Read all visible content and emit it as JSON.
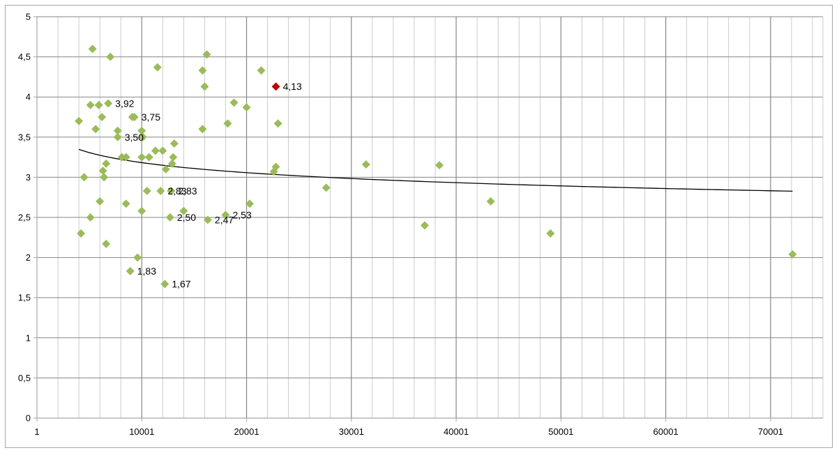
{
  "chart_data": {
    "type": "scatter",
    "title": "",
    "xlabel": "",
    "ylabel": "",
    "xlim": [
      1,
      75001
    ],
    "ylim": [
      0,
      5
    ],
    "x_ticks": [
      1,
      10001,
      20001,
      30001,
      40001,
      50001,
      60001,
      70001
    ],
    "y_ticks": [
      0,
      0.5,
      1,
      1.5,
      2,
      2.5,
      3,
      3.5,
      4,
      4.5,
      5
    ],
    "x_tick_labels": [
      "1",
      "10001",
      "20001",
      "30001",
      "40001",
      "50001",
      "60001",
      "70001"
    ],
    "y_tick_labels": [
      "0",
      "0,5",
      "1",
      "1,5",
      "2",
      "2,5",
      "3",
      "3,5",
      "4",
      "4,5",
      "5"
    ],
    "grid": true,
    "legend": "none",
    "colors": {
      "point": "#9bbb59",
      "highlight": "#c00000",
      "trendline": "#000000",
      "grid": "#a6a6a6"
    },
    "series": [
      {
        "values": [
          [
            5301,
            4.6
          ],
          [
            7001,
            4.5
          ],
          [
            16201,
            4.53
          ],
          [
            11501,
            4.37
          ],
          [
            15801,
            4.33
          ],
          [
            21401,
            4.33
          ],
          [
            16001,
            4.13
          ],
          [
            18801,
            3.93
          ],
          [
            20001,
            3.87
          ],
          [
            4001,
            3.7
          ],
          [
            5101,
            3.9
          ],
          [
            5901,
            3.9
          ],
          [
            6801,
            3.92
          ],
          [
            6201,
            3.75
          ],
          [
            9101,
            3.75
          ],
          [
            9301,
            3.75
          ],
          [
            18201,
            3.67
          ],
          [
            23001,
            3.67
          ],
          [
            5601,
            3.6
          ],
          [
            7701,
            3.58
          ],
          [
            10001,
            3.58
          ],
          [
            15801,
            3.6
          ],
          [
            7701,
            3.5
          ],
          [
            10101,
            3.5
          ],
          [
            13101,
            3.42
          ],
          [
            11301,
            3.33
          ],
          [
            12001,
            3.33
          ],
          [
            8101,
            3.25
          ],
          [
            8501,
            3.25
          ],
          [
            10001,
            3.25
          ],
          [
            10701,
            3.25
          ],
          [
            13001,
            3.25
          ],
          [
            6601,
            3.17
          ],
          [
            12901,
            3.17
          ],
          [
            22801,
            3.13
          ],
          [
            31401,
            3.16
          ],
          [
            38401,
            3.15
          ],
          [
            12301,
            3.1
          ],
          [
            22601,
            3.07
          ],
          [
            6301,
            3.08
          ],
          [
            4501,
            3.0
          ],
          [
            6401,
            3.0
          ],
          [
            27601,
            2.87
          ],
          [
            10501,
            2.83
          ],
          [
            11801,
            2.83
          ],
          [
            12801,
            2.83
          ],
          [
            6001,
            2.7
          ],
          [
            8501,
            2.67
          ],
          [
            20301,
            2.67
          ],
          [
            43301,
            2.7
          ],
          [
            10001,
            2.58
          ],
          [
            14001,
            2.58
          ],
          [
            18001,
            2.53
          ],
          [
            5101,
            2.5
          ],
          [
            12701,
            2.5
          ],
          [
            16301,
            2.47
          ],
          [
            37001,
            2.4
          ],
          [
            4201,
            2.3
          ],
          [
            49001,
            2.3
          ],
          [
            6601,
            2.17
          ],
          [
            9601,
            2.0
          ],
          [
            72101,
            2.04
          ],
          [
            8901,
            1.83
          ],
          [
            12201,
            1.67
          ]
        ]
      },
      {
        "values": [
          [
            22801,
            4.13
          ]
        ]
      }
    ],
    "data_labels": [
      {
        "x": 22801,
        "y": 4.13,
        "text": "4,13"
      },
      {
        "x": 6801,
        "y": 3.92,
        "text": "3,92"
      },
      {
        "x": 9301,
        "y": 3.75,
        "text": "3,75"
      },
      {
        "x": 7701,
        "y": 3.5,
        "text": "3,50"
      },
      {
        "x": 11801,
        "y": 2.83,
        "text": "2,83"
      },
      {
        "x": 12801,
        "y": 2.83,
        "text": "2,83"
      },
      {
        "x": 12701,
        "y": 2.5,
        "text": "2,50"
      },
      {
        "x": 16301,
        "y": 2.47,
        "text": "2,47"
      },
      {
        "x": 18001,
        "y": 2.53,
        "text": "2,53"
      },
      {
        "x": 8901,
        "y": 1.83,
        "text": "1,83"
      },
      {
        "x": 12201,
        "y": 1.67,
        "text": "1,67"
      }
    ],
    "trendline": {
      "type": "logarithmic",
      "x_range": [
        4001,
        72101
      ],
      "a": 4.84,
      "b": -0.18
    }
  }
}
